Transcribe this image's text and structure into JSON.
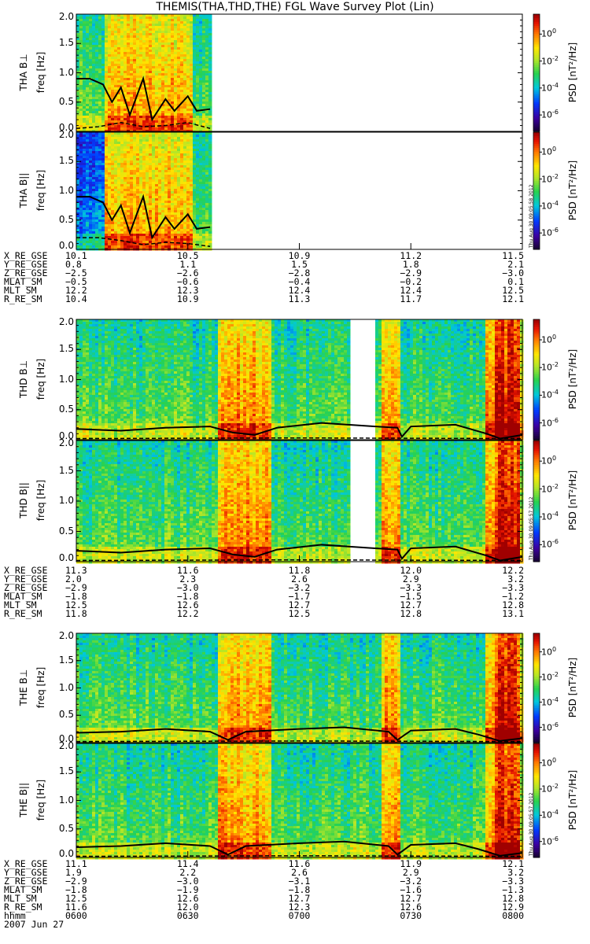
{
  "title": "THEMIS(THA,THD,THE) FGL Wave Survey Plot (Lin)",
  "colors": {
    "background": "#ffffff",
    "axis": "#000000",
    "trace": "#000000"
  },
  "chart_data": [
    {
      "type": "heatmap",
      "panel": "THA B⊥",
      "ylabel_panel": "THA B⊥",
      "ylabel_unit": "freq [Hz]",
      "ylim": [
        0,
        2.0
      ],
      "yticks": [
        "2.0",
        "1.5",
        "1.0",
        "0.5",
        "0.0"
      ],
      "data_extent_x": [
        0,
        0.3
      ],
      "colorbar": {
        "label": "PSD [nT²/Hz]",
        "ticks": [
          "10⁰",
          "10⁻²",
          "10⁻⁴",
          "10⁻⁶"
        ]
      },
      "trace_solid": [
        [
          0,
          0.9
        ],
        [
          0.03,
          0.9
        ],
        [
          0.06,
          0.8
        ],
        [
          0.08,
          0.5
        ],
        [
          0.1,
          0.75
        ],
        [
          0.12,
          0.28
        ],
        [
          0.15,
          0.9
        ],
        [
          0.17,
          0.2
        ],
        [
          0.2,
          0.55
        ],
        [
          0.22,
          0.35
        ],
        [
          0.25,
          0.6
        ],
        [
          0.27,
          0.35
        ],
        [
          0.3,
          0.38
        ]
      ],
      "trace_dashed": [
        [
          0,
          0.05
        ],
        [
          0.05,
          0.08
        ],
        [
          0.1,
          0.15
        ],
        [
          0.15,
          0.08
        ],
        [
          0.2,
          0.1
        ],
        [
          0.25,
          0.15
        ],
        [
          0.3,
          0.05
        ]
      ]
    },
    {
      "type": "heatmap",
      "panel": "THA B∥",
      "ylabel_panel": "THA B||",
      "ylabel_unit": "freq [Hz]",
      "ylim": [
        0,
        2.0
      ],
      "yticks": [
        "2.0",
        "1.5",
        "1.0",
        "0.5",
        "0.0"
      ],
      "data_extent_x": [
        0,
        0.3
      ],
      "colorbar": {
        "label": "PSD [nT²/Hz]",
        "ticks": [
          "10⁰",
          "10⁻²",
          "10⁻⁴",
          "10⁻⁶"
        ]
      },
      "stamp": "Thu Aug 30 09:05:58 2012",
      "trace_solid": [
        [
          0,
          0.9
        ],
        [
          0.03,
          0.9
        ],
        [
          0.06,
          0.8
        ],
        [
          0.08,
          0.5
        ],
        [
          0.1,
          0.75
        ],
        [
          0.12,
          0.28
        ],
        [
          0.15,
          0.9
        ],
        [
          0.17,
          0.2
        ],
        [
          0.2,
          0.55
        ],
        [
          0.22,
          0.35
        ],
        [
          0.25,
          0.6
        ],
        [
          0.27,
          0.35
        ],
        [
          0.3,
          0.38
        ]
      ],
      "trace_dashed": [
        [
          0,
          0.2
        ],
        [
          0.05,
          0.2
        ],
        [
          0.1,
          0.15
        ],
        [
          0.15,
          0.08
        ],
        [
          0.2,
          0.12
        ],
        [
          0.25,
          0.1
        ],
        [
          0.3,
          0.05
        ]
      ]
    },
    {
      "type": "heatmap",
      "panel": "THD B⊥",
      "ylabel_panel": "THD B⊥",
      "ylabel_unit": "freq [Hz]",
      "ylim": [
        0,
        2.0
      ],
      "yticks": [
        "2.0",
        "1.5",
        "1.0",
        "0.5",
        "0.0"
      ],
      "gap_x": [
        0.61,
        0.67
      ],
      "colorbar": {
        "label": "PSD [nT²/Hz]",
        "ticks": [
          "10⁰",
          "10⁻²",
          "10⁻⁴",
          "10⁻⁶"
        ]
      },
      "trace_solid": [
        [
          0,
          0.18
        ],
        [
          0.1,
          0.15
        ],
        [
          0.2,
          0.2
        ],
        [
          0.3,
          0.22
        ],
        [
          0.35,
          0.12
        ],
        [
          0.4,
          0.08
        ],
        [
          0.45,
          0.2
        ],
        [
          0.55,
          0.28
        ],
        [
          0.61,
          0.25
        ],
        [
          0.67,
          0.22
        ],
        [
          0.72,
          0.2
        ],
        [
          0.73,
          0.05
        ],
        [
          0.75,
          0.22
        ],
        [
          0.85,
          0.25
        ],
        [
          0.92,
          0.1
        ],
        [
          0.95,
          0.02
        ],
        [
          1.0,
          0.08
        ]
      ],
      "trace_dashed": [
        [
          0,
          0.02
        ],
        [
          0.5,
          0.03
        ],
        [
          1.0,
          0.02
        ]
      ]
    },
    {
      "type": "heatmap",
      "panel": "THD B∥",
      "ylabel_panel": "THD B||",
      "ylabel_unit": "freq [Hz]",
      "ylim": [
        0,
        2.0
      ],
      "yticks": [
        "2.0",
        "1.5",
        "1.0",
        "0.5",
        "0.0"
      ],
      "gap_x": [
        0.61,
        0.67
      ],
      "colorbar": {
        "label": "PSD [nT²/Hz]",
        "ticks": [
          "10⁰",
          "10⁻²",
          "10⁻⁴",
          "10⁻⁶"
        ]
      },
      "stamp": "Thu Aug 30 09:05:57 2012",
      "trace_solid": [
        [
          0,
          0.18
        ],
        [
          0.1,
          0.15
        ],
        [
          0.2,
          0.2
        ],
        [
          0.3,
          0.22
        ],
        [
          0.35,
          0.12
        ],
        [
          0.4,
          0.08
        ],
        [
          0.45,
          0.2
        ],
        [
          0.55,
          0.28
        ],
        [
          0.61,
          0.25
        ],
        [
          0.67,
          0.22
        ],
        [
          0.72,
          0.2
        ],
        [
          0.73,
          0.05
        ],
        [
          0.75,
          0.22
        ],
        [
          0.85,
          0.25
        ],
        [
          0.92,
          0.1
        ],
        [
          0.95,
          0.02
        ],
        [
          1.0,
          0.08
        ]
      ],
      "trace_dashed": [
        [
          0,
          0.02
        ],
        [
          0.5,
          0.03
        ],
        [
          1.0,
          0.02
        ]
      ]
    },
    {
      "type": "heatmap",
      "panel": "THE B⊥",
      "ylabel_panel": "THE B⊥",
      "ylabel_unit": "freq [Hz]",
      "ylim": [
        0,
        2.0
      ],
      "yticks": [
        "2.0",
        "1.5",
        "1.0",
        "0.5",
        "0.0"
      ],
      "colorbar": {
        "label": "PSD [nT²/Hz]",
        "ticks": [
          "10⁰",
          "10⁻²",
          "10⁻⁴",
          "10⁻⁶"
        ]
      },
      "trace_solid": [
        [
          0,
          0.18
        ],
        [
          0.1,
          0.2
        ],
        [
          0.2,
          0.25
        ],
        [
          0.3,
          0.2
        ],
        [
          0.34,
          0.05
        ],
        [
          0.38,
          0.2
        ],
        [
          0.5,
          0.25
        ],
        [
          0.6,
          0.28
        ],
        [
          0.7,
          0.2
        ],
        [
          0.72,
          0.05
        ],
        [
          0.75,
          0.22
        ],
        [
          0.85,
          0.25
        ],
        [
          0.9,
          0.15
        ],
        [
          0.95,
          0.03
        ],
        [
          1.0,
          0.08
        ]
      ],
      "trace_dashed": [
        [
          0,
          0.02
        ],
        [
          0.5,
          0.03
        ],
        [
          1.0,
          0.02
        ]
      ]
    },
    {
      "type": "heatmap",
      "panel": "THE B∥",
      "ylabel_panel": "THE B||",
      "ylabel_unit": "freq [Hz]",
      "ylim": [
        0,
        2.0
      ],
      "yticks": [
        "2.0",
        "1.5",
        "1.0",
        "0.5",
        "0.0"
      ],
      "colorbar": {
        "label": "PSD [nT²/Hz]",
        "ticks": [
          "10⁰",
          "10⁻²",
          "10⁻⁴",
          "10⁻⁶"
        ]
      },
      "stamp": "Thu Aug 30 09:05:57 2012",
      "trace_solid": [
        [
          0,
          0.18
        ],
        [
          0.1,
          0.2
        ],
        [
          0.2,
          0.25
        ],
        [
          0.3,
          0.2
        ],
        [
          0.34,
          0.05
        ],
        [
          0.38,
          0.2
        ],
        [
          0.5,
          0.25
        ],
        [
          0.6,
          0.28
        ],
        [
          0.7,
          0.2
        ],
        [
          0.72,
          0.05
        ],
        [
          0.75,
          0.22
        ],
        [
          0.85,
          0.25
        ],
        [
          0.9,
          0.15
        ],
        [
          0.95,
          0.03
        ],
        [
          1.0,
          0.08
        ]
      ],
      "trace_dashed": [
        [
          0,
          0.02
        ],
        [
          0.5,
          0.03
        ],
        [
          1.0,
          0.02
        ]
      ]
    }
  ],
  "ephemeris": [
    {
      "labels": [
        "X_RE_GSE",
        "Y_RE_GSE",
        "Z_RE_GSE",
        "MLAT_SM",
        "MLT_SM",
        "R_RE_SM"
      ],
      "values": [
        [
          "10.1",
          "10.5",
          "10.9",
          "11.2",
          "11.5"
        ],
        [
          "0.8",
          "1.1",
          "1.5",
          "1.8",
          "2.1"
        ],
        [
          "−2.5",
          "−2.6",
          "−2.8",
          "−2.9",
          "−3.0"
        ],
        [
          "−0.5",
          "−0.6",
          "−0.4",
          "−0.2",
          "0.1"
        ],
        [
          "12.2",
          "12.3",
          "12.4",
          "12.4",
          "12.5"
        ],
        [
          "10.4",
          "10.9",
          "11.3",
          "11.7",
          "12.1"
        ]
      ]
    },
    {
      "labels": [
        "X_RE_GSE",
        "Y_RE_GSE",
        "Z_RE_GSE",
        "MLAT_SM",
        "MLT_SM",
        "R_RE_SM"
      ],
      "values": [
        [
          "11.3",
          "11.6",
          "11.8",
          "12.0",
          "12.2"
        ],
        [
          "2.0",
          "2.3",
          "2.6",
          "2.9",
          "3.2"
        ],
        [
          "−2.9",
          "−3.0",
          "−3.2",
          "−3.3",
          "−3.3"
        ],
        [
          "−1.8",
          "−1.8",
          "−1.7",
          "−1.5",
          "−1.2"
        ],
        [
          "12.5",
          "12.6",
          "12.7",
          "12.7",
          "12.8"
        ],
        [
          "11.8",
          "12.2",
          "12.5",
          "12.8",
          "13.1"
        ]
      ]
    },
    {
      "labels": [
        "X_RE_GSE",
        "Y_RE_GSE",
        "Z_RE_GSE",
        "MLAT_SM",
        "MLT_SM",
        "R_RE_SM",
        "hhmm",
        "2007 Jun 27"
      ],
      "values": [
        [
          "11.1",
          "11.4",
          "11.6",
          "11.9",
          "12.1"
        ],
        [
          "1.9",
          "2.2",
          "2.6",
          "2.9",
          "3.2"
        ],
        [
          "−2.9",
          "−3.0",
          "−3.1",
          "−3.2",
          "−3.3"
        ],
        [
          "−1.8",
          "−1.9",
          "−1.8",
          "−1.6",
          "−1.3"
        ],
        [
          "12.5",
          "12.6",
          "12.7",
          "12.7",
          "12.8"
        ],
        [
          "11.6",
          "12.0",
          "12.3",
          "12.6",
          "12.9"
        ],
        [
          "0600",
          "0630",
          "0700",
          "0730",
          "0800"
        ],
        []
      ]
    }
  ]
}
